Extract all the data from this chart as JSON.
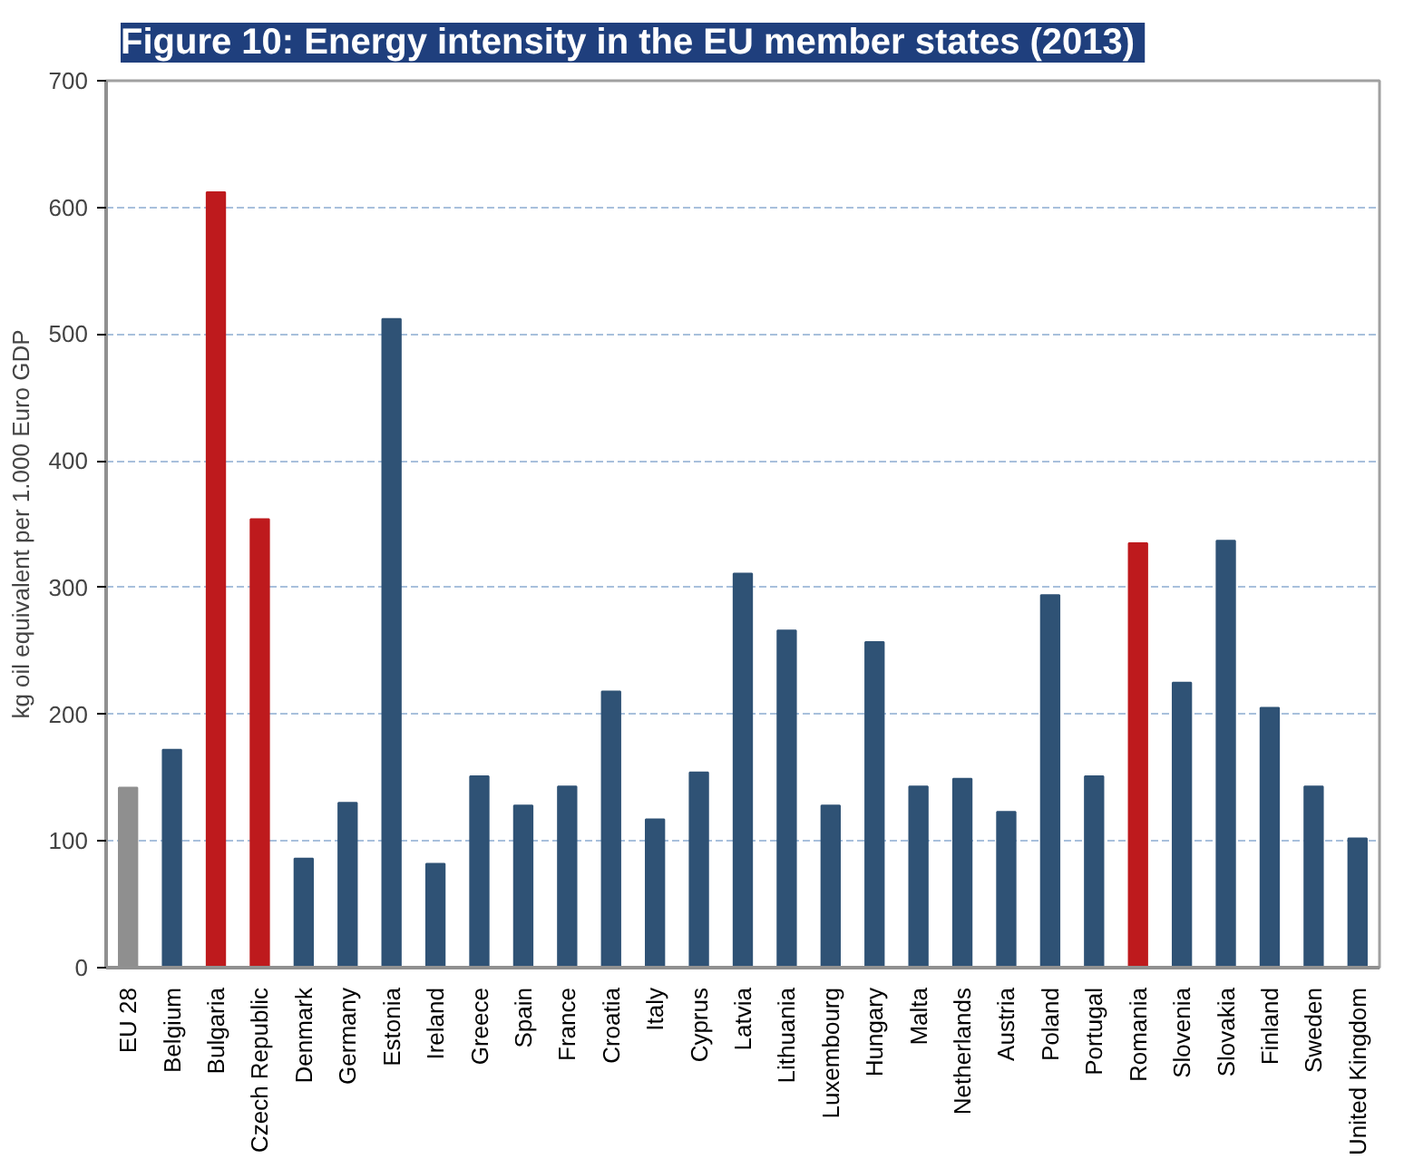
{
  "chart_data": {
    "type": "bar",
    "title": "Figure 10:  Energy intensity in the EU member states (2013)",
    "ylabel": "kg oil equivalent per 1.000 Euro GDP",
    "categories": [
      "EU 28",
      "Belgium",
      "Bulgaria",
      "Czech Republic",
      "Denmark",
      "Germany",
      "Estonia",
      "Ireland",
      "Greece",
      "Spain",
      "France",
      "Croatia",
      "Italy",
      "Cyprus",
      "Latvia",
      "Lithuania",
      "Luxembourg",
      "Hungary",
      "Malta",
      "Netherlands",
      "Austria",
      "Poland",
      "Portugal",
      "Romania",
      "Slovenia",
      "Slovakia",
      "Finland",
      "Sweden",
      "United Kingdom"
    ],
    "values": [
      142,
      172,
      612,
      354,
      86,
      130,
      512,
      82,
      151,
      128,
      143,
      218,
      117,
      154,
      311,
      266,
      128,
      257,
      143,
      149,
      123,
      294,
      151,
      335,
      225,
      337,
      205,
      143,
      102
    ],
    "colors": [
      "#8f8f8f",
      "#2f5275",
      "#be1a1d",
      "#be1a1d",
      "#2f5275",
      "#2f5275",
      "#2f5275",
      "#2f5275",
      "#2f5275",
      "#2f5275",
      "#2f5275",
      "#2f5275",
      "#2f5275",
      "#2f5275",
      "#2f5275",
      "#2f5275",
      "#2f5275",
      "#2f5275",
      "#2f5275",
      "#2f5275",
      "#2f5275",
      "#2f5275",
      "#2f5275",
      "#be1a1d",
      "#2f5275",
      "#2f5275",
      "#2f5275",
      "#2f5275",
      "#2f5275"
    ],
    "ylim": [
      0,
      700
    ],
    "yticks": [
      0,
      100,
      200,
      300,
      400,
      500,
      600,
      700
    ],
    "grid": "y"
  }
}
